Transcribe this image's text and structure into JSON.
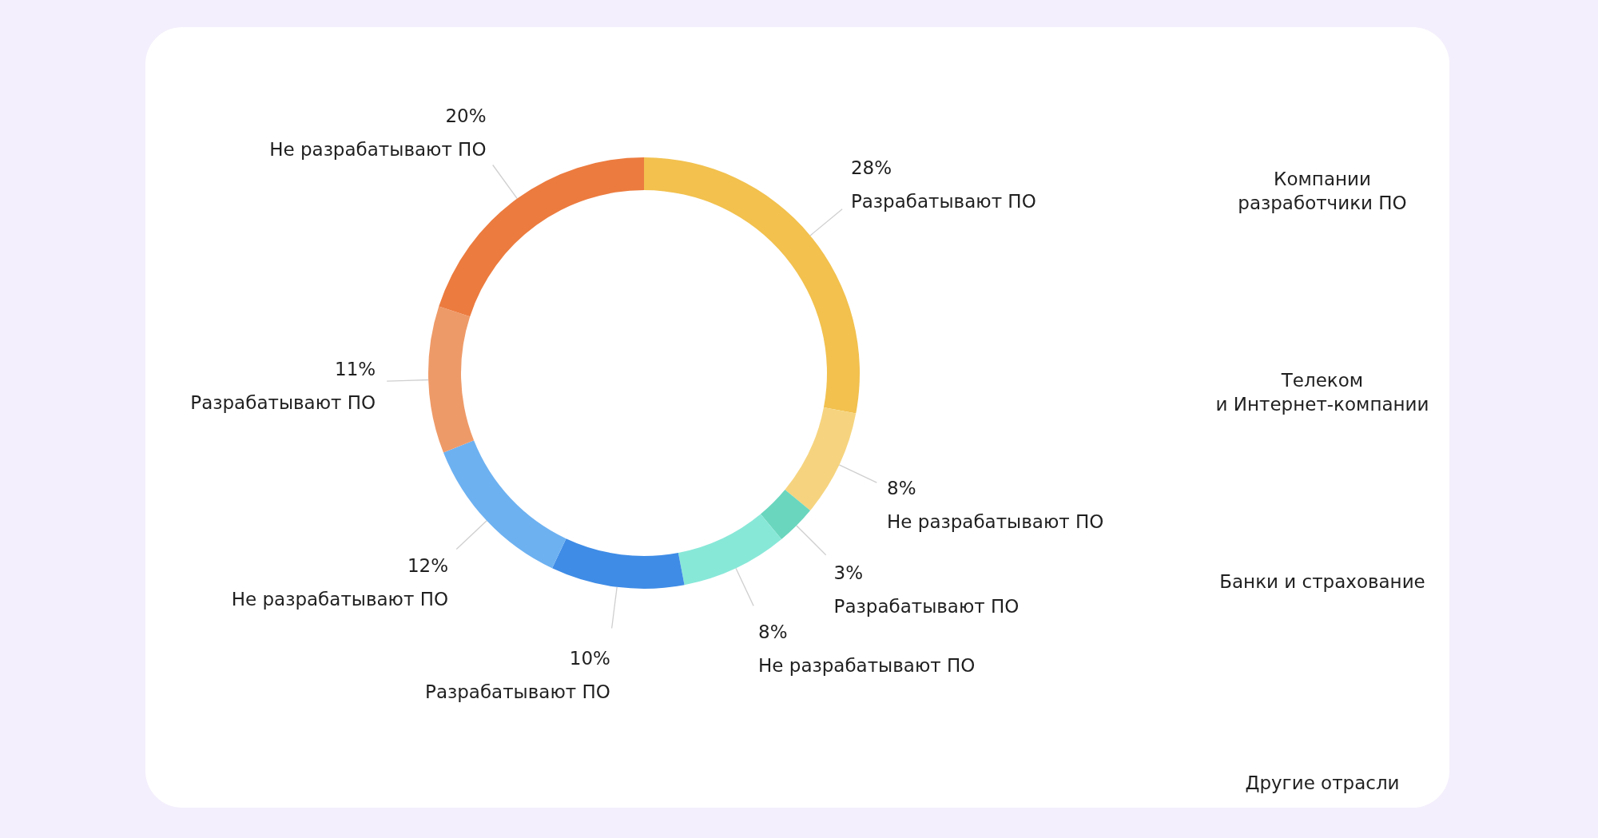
{
  "chart_data": {
    "type": "donut",
    "categories": [
      "Разрабатывают ПО",
      "Не разрабатывают ПО",
      "Разрабатывают ПО",
      "Не разрабатывают ПО",
      "Разрабатывают ПО",
      "Не разрабатывают ПО",
      "Разрабатывают ПО",
      "Не разрабатывают ПО"
    ],
    "values": [
      28,
      8,
      3,
      8,
      10,
      12,
      11,
      20
    ],
    "colors": [
      "#f2c14e",
      "#f6d47f",
      "#6ad6be",
      "#88e8d8",
      "#3f8ce6",
      "#6db1f1",
      "#ee9a68",
      "#ec7b3f"
    ],
    "value_labels": [
      "28%",
      "8%",
      "3%",
      "8%",
      "10%",
      "12%",
      "11%",
      "20%"
    ],
    "annotations": [
      "Компании разработчики ПО",
      "Телеком и Интернет-компании",
      "Банки и страхование",
      "Другие отрасли"
    ]
  }
}
